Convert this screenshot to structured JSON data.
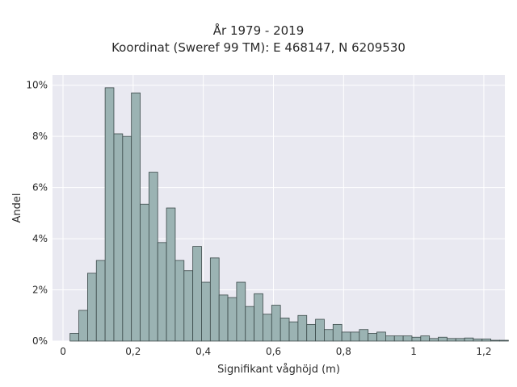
{
  "chart_data": {
    "type": "bar",
    "title": "År 1979 - 2019",
    "subtitle": "Koordinat (Sweref 99 TM): E 468147, N 6209530",
    "xlabel": "Signifikant våghöjd (m)",
    "ylabel": "Andel",
    "xlim": [
      -0.03,
      1.26
    ],
    "ylim": [
      0,
      10.4
    ],
    "bin_width": 0.025,
    "bin_start": 0.02,
    "values": [
      0.3,
      1.2,
      2.65,
      3.15,
      9.9,
      8.1,
      8.0,
      9.7,
      5.35,
      6.6,
      3.85,
      5.2,
      3.15,
      2.75,
      3.7,
      2.3,
      3.25,
      1.8,
      1.7,
      2.3,
      1.35,
      1.85,
      1.05,
      1.4,
      0.9,
      0.75,
      1.0,
      0.65,
      0.85,
      0.45,
      0.65,
      0.35,
      0.35,
      0.45,
      0.3,
      0.35,
      0.2,
      0.2,
      0.2,
      0.15,
      0.2,
      0.1,
      0.15,
      0.1,
      0.1,
      0.12,
      0.08,
      0.08,
      0.03,
      0.03
    ],
    "x_ticks": [
      0,
      0.2,
      0.4,
      0.6,
      0.8,
      1,
      1.2
    ],
    "x_tick_labels": [
      "0",
      "0,2",
      "0,4",
      "0,6",
      "0,8",
      "1",
      "1,2"
    ],
    "y_ticks": [
      0,
      2,
      4,
      6,
      8,
      10
    ],
    "y_tick_labels": [
      "0%",
      "2%",
      "4%",
      "6%",
      "8%",
      "10%"
    ],
    "grid": true,
    "colors": {
      "bar_fill": "#9bb3b3",
      "bar_stroke": "#3c4a4a",
      "plot_bg": "#e9e9f1",
      "grid": "#ffffff"
    }
  }
}
